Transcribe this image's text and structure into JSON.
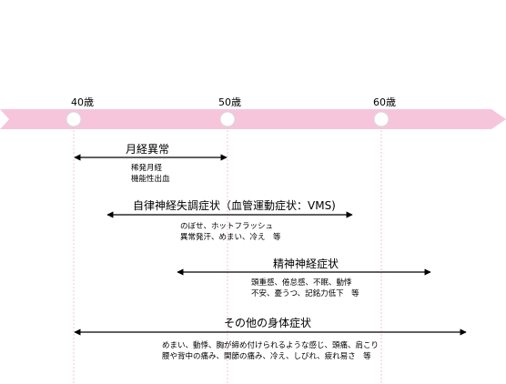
{
  "timeline": {
    "ages": [
      "40歳",
      "50歳",
      "60歳"
    ],
    "colors": {
      "band": "#f6c5dc",
      "marker_stroke": "#d7d7d7",
      "guide": "#f2b8cf",
      "arrow": "#000000"
    }
  },
  "items": [
    {
      "title": "月経異常",
      "notes": [
        "稀発月経",
        "機能性出血"
      ]
    },
    {
      "title": "自律神経失調症状（血管運動症状：VMS)",
      "notes": [
        "のぼせ、ホットフラッシュ",
        "異常発汗、めまい、冷え　等"
      ]
    },
    {
      "title": "精神神経症状",
      "notes": [
        "頭重感、倦怠感、不眠、動悸",
        "不安、憂うつ、記銘力低下　等"
      ]
    },
    {
      "title": "その他の身体症状",
      "notes": [
        "めまい、動悸、胸が締め付けられるような感じ、頭痛、肩こり",
        "腰や背中の痛み、関節の痛み、冷え、しびれ、疲れ易さ　等"
      ]
    }
  ]
}
